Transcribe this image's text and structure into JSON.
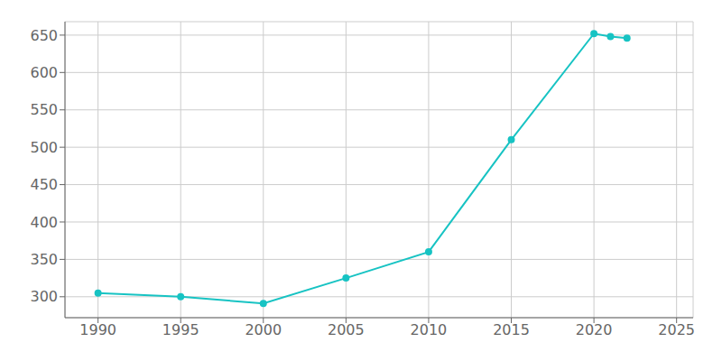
{
  "chart_data": {
    "type": "line",
    "x": [
      1990,
      1995,
      2000,
      2005,
      2010,
      2015,
      2020,
      2021,
      2022
    ],
    "values": [
      305,
      300,
      291,
      325,
      360,
      510,
      652,
      648,
      646
    ],
    "color": "#17c3c3",
    "marker": "circle",
    "xlim": [
      1988,
      2026
    ],
    "ylim": [
      272,
      668
    ],
    "xticks": [
      1990,
      1995,
      2000,
      2005,
      2010,
      2015,
      2020,
      2025
    ],
    "yticks": [
      300,
      350,
      400,
      450,
      500,
      550,
      600,
      650
    ],
    "grid": true
  }
}
